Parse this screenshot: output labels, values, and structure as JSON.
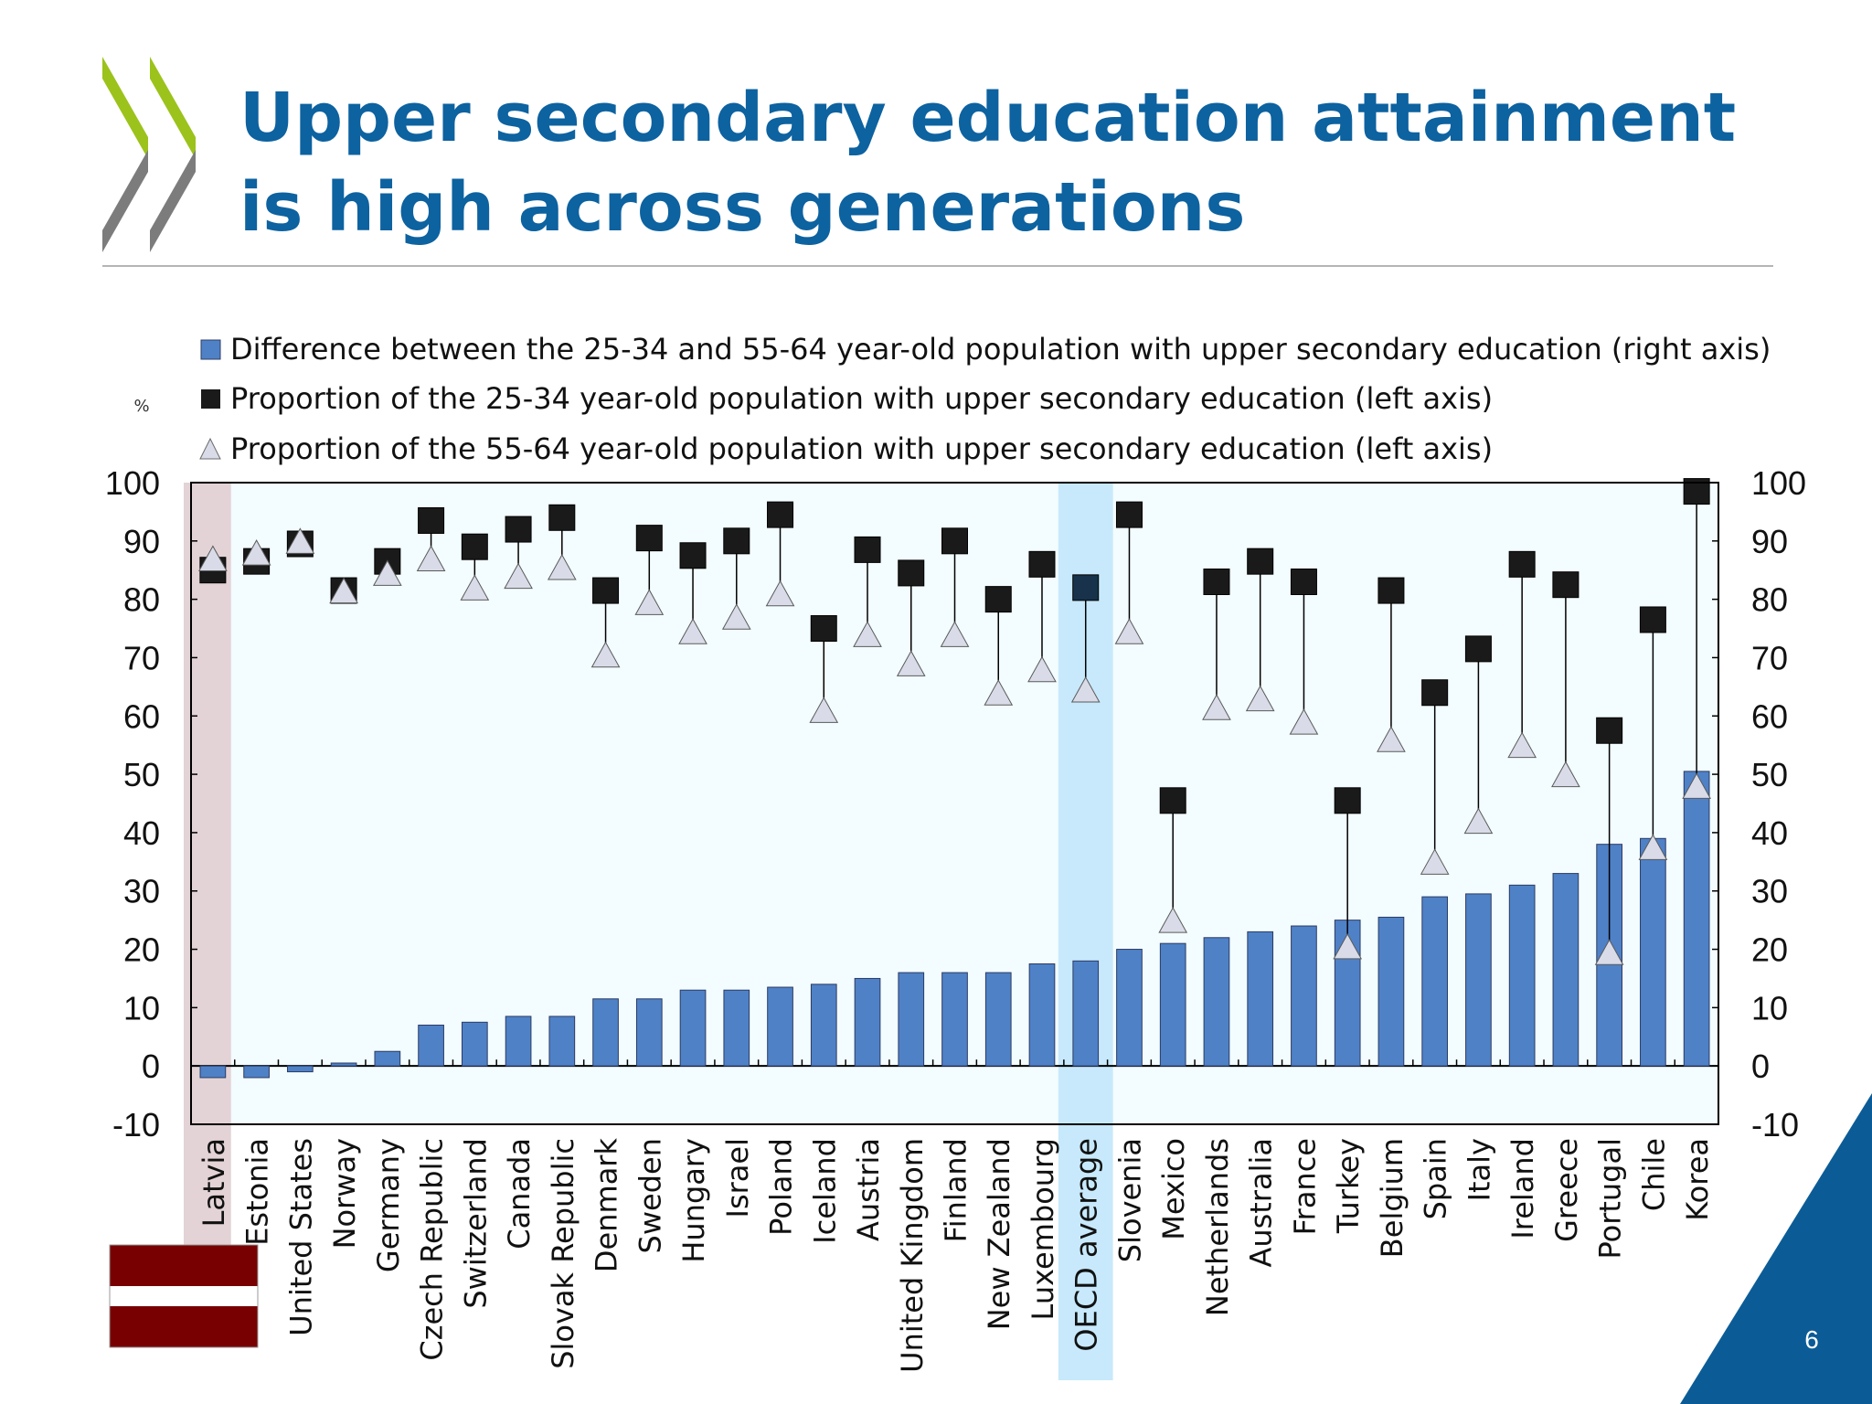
{
  "slide": {
    "title": "Upper secondary education attainment is high across generations",
    "page_number": "6",
    "highlight_country": "Latvia",
    "colors": {
      "title": "#0d62a0",
      "bar": "#4f81c7",
      "square": "#1a1a1a",
      "triangle": "#d9dce8",
      "latvia_band": "#e3d3d6",
      "oecd_band": "#c7e9fb",
      "plot_bg": "#f3fcfe",
      "corner_triangle": "#0b5c96",
      "logo_green": "#9bc31c",
      "logo_grey": "#7c7c7c",
      "flag_red": "#780000",
      "flag_white": "#ffffff"
    }
  },
  "chart_data": {
    "type": "bar",
    "percent_label": "%",
    "ylim": [
      -10,
      100
    ],
    "yticks": [
      -10,
      0,
      10,
      20,
      30,
      40,
      50,
      60,
      70,
      80,
      90,
      100
    ],
    "grid": false,
    "legend_position": "top",
    "categories": [
      "Latvia",
      "Estonia",
      "United States",
      "Norway",
      "Germany",
      "Czech Republic",
      "Switzerland",
      "Canada",
      "Slovak Republic",
      "Denmark",
      "Sweden",
      "Hungary",
      "Israel",
      "Poland",
      "Iceland",
      "Austria",
      "United Kingdom",
      "Finland",
      "New Zealand",
      "Luxembourg",
      "OECD average",
      "Slovenia",
      "Mexico",
      "Netherlands",
      "Australia",
      "France",
      "Turkey",
      "Belgium",
      "Spain",
      "Italy",
      "Ireland",
      "Greece",
      "Portugal",
      "Chile",
      "Korea"
    ],
    "series": [
      {
        "name": "Difference between the 25-34 and 55-64 year-old population with upper secondary education (right axis)",
        "marker": "bar",
        "axis": "right",
        "values": [
          -2,
          -2,
          -1,
          0.5,
          2.5,
          7,
          7.5,
          8.5,
          8.5,
          11.5,
          11.5,
          13,
          13,
          13.5,
          14,
          15,
          16,
          16,
          16,
          17.5,
          18,
          20,
          21,
          22,
          23,
          24,
          25,
          25.5,
          29,
          29.5,
          31,
          33,
          38,
          39,
          50.5
        ]
      },
      {
        "name": "Proportion of the 25-34 year-old population with upper secondary education (left axis)",
        "marker": "square",
        "axis": "left",
        "values": [
          85,
          86.5,
          89.5,
          81.5,
          86.5,
          93.5,
          89,
          92,
          94,
          81.5,
          90.5,
          87.5,
          90,
          94.5,
          75,
          88.5,
          84.5,
          90,
          80,
          86,
          82,
          94.5,
          45.5,
          83,
          86.5,
          83,
          45.5,
          81.5,
          64,
          71.5,
          86,
          82.5,
          57.5,
          76.5,
          98.5
        ]
      },
      {
        "name": "Proportion of the 55-64 year-old population with upper secondary education (left axis)",
        "marker": "triangle",
        "axis": "left",
        "values": [
          87,
          88,
          90,
          81.5,
          84.5,
          87,
          82,
          84,
          85.5,
          70.5,
          79.5,
          74.5,
          77,
          81,
          61,
          74,
          69,
          74,
          64,
          68,
          64.5,
          74.5,
          25,
          61.5,
          63,
          59,
          20.5,
          56,
          35,
          42,
          55,
          50,
          19.5,
          37.5,
          48
        ]
      }
    ]
  }
}
